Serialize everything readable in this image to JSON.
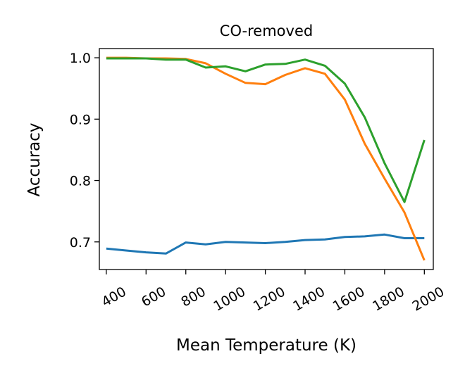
{
  "chart_data": {
    "type": "line",
    "title": "CO-removed",
    "xlabel": "Mean Temperature (K)",
    "ylabel": "Accuracy",
    "xlim": [
      365,
      2045
    ],
    "ylim": [
      0.655,
      1.015
    ],
    "x_ticks": [
      400,
      600,
      800,
      1000,
      1200,
      1400,
      1600,
      1800,
      2000
    ],
    "y_ticks": [
      0.7,
      0.8,
      0.9,
      1.0
    ],
    "y_tick_labels": [
      "0.7",
      "0.8",
      "0.9",
      "1.0"
    ],
    "grid": false,
    "legend": "none",
    "x": [
      400,
      500,
      600,
      700,
      800,
      900,
      1000,
      1100,
      1200,
      1300,
      1400,
      1500,
      1600,
      1700,
      1800,
      1900,
      2000
    ],
    "series": [
      {
        "color": "#1f77b4",
        "values": [
          0.689,
          0.686,
          0.683,
          0.681,
          0.699,
          0.696,
          0.7,
          0.699,
          0.698,
          0.7,
          0.703,
          0.704,
          0.708,
          0.709,
          0.712,
          0.706,
          0.706
        ]
      },
      {
        "color": "#ff7f0e",
        "values": [
          1.0,
          1.0,
          0.999,
          0.999,
          0.998,
          0.991,
          0.974,
          0.959,
          0.957,
          0.972,
          0.983,
          0.974,
          0.932,
          0.86,
          0.803,
          0.748,
          0.67
        ]
      },
      {
        "color": "#2ca02c",
        "values": [
          0.999,
          0.999,
          0.999,
          0.997,
          0.997,
          0.984,
          0.986,
          0.978,
          0.989,
          0.99,
          0.997,
          0.987,
          0.958,
          0.903,
          0.828,
          0.765,
          0.866
        ]
      }
    ]
  }
}
